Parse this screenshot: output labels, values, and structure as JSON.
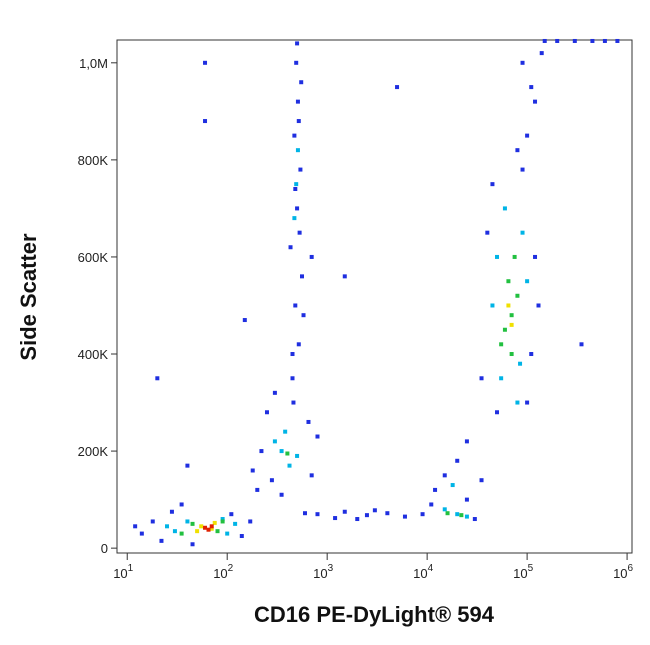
{
  "chart_data": {
    "type": "scatter",
    "xscale": "log",
    "x_label": "CD16 PE-DyLight® 594",
    "y_label": "Side Scatter",
    "xlim": [
      7.9,
      1120000
    ],
    "ylim": [
      -10000,
      1047000
    ],
    "xticks": [
      {
        "value": 10,
        "label": "10",
        "exponent": "1"
      },
      {
        "value": 100,
        "label": "10",
        "exponent": "2"
      },
      {
        "value": 1000,
        "label": "10",
        "exponent": "3"
      },
      {
        "value": 10000,
        "label": "10",
        "exponent": "4"
      },
      {
        "value": 100000,
        "label": "10",
        "exponent": "5"
      },
      {
        "value": 1000000,
        "label": "10",
        "exponent": "6"
      }
    ],
    "yticks": [
      0,
      {
        "value": 200000,
        "label": "200K"
      },
      {
        "value": 400000,
        "label": "400K"
      },
      {
        "value": 600000,
        "label": "600K"
      },
      {
        "value": 800000,
        "label": "800K"
      },
      {
        "value": 1000000,
        "label": "1,0M"
      }
    ],
    "series": [
      {
        "color": "#1f2fe0",
        "x": [
          14,
          18,
          22,
          28,
          35,
          45,
          110,
          140,
          170,
          12,
          200,
          250,
          300,
          220,
          180,
          700,
          800,
          650,
          350,
          280,
          450,
          520,
          480,
          560,
          430,
          500,
          540,
          470,
          510,
          490,
          450,
          530,
          480,
          520,
          550,
          500,
          460,
          580,
          1500,
          2500,
          4000,
          6000,
          800,
          1200,
          3000,
          9000,
          600,
          2000,
          12000,
          15000,
          20000,
          25000,
          30000,
          11000,
          35000,
          35000,
          40000,
          45000,
          110000,
          120000,
          100000,
          90000,
          50000,
          130000,
          100000,
          110000,
          90000,
          120000,
          80000,
          140000,
          200000,
          300000,
          450000,
          600000,
          800000,
          150000,
          60,
          60,
          150,
          20,
          350000,
          1500,
          5000,
          40,
          25000,
          700
        ],
        "values": [
          30000,
          55000,
          15000,
          75000,
          90000,
          8000,
          70000,
          25000,
          55000,
          45000,
          120000,
          280000,
          320000,
          200000,
          160000,
          150000,
          230000,
          260000,
          110000,
          140000,
          350000,
          420000,
          500000,
          560000,
          620000,
          700000,
          780000,
          850000,
          920000,
          1000000,
          400000,
          650000,
          740000,
          880000,
          960000,
          1040000,
          300000,
          480000,
          75000,
          68000,
          72000,
          65000,
          70000,
          62000,
          78000,
          70000,
          72000,
          60000,
          120000,
          150000,
          180000,
          100000,
          60000,
          90000,
          140000,
          350000,
          650000,
          750000,
          400000,
          600000,
          300000,
          780000,
          280000,
          500000,
          850000,
          950000,
          1000000,
          920000,
          820000,
          1020000,
          1045000,
          1045000,
          1045000,
          1045000,
          1045000,
          1045000,
          1000000,
          880000,
          470000,
          350000,
          420000,
          560000,
          950000,
          170000,
          220000,
          600000
        ]
      },
      {
        "color": "#00b4e6",
        "x": [
          30,
          40,
          90,
          100,
          25,
          120,
          350,
          420,
          300,
          500,
          380,
          490,
          510,
          470,
          15000,
          20000,
          18000,
          25000,
          55000,
          85000,
          50000,
          90000,
          60000,
          80000,
          45000,
          100000
        ],
        "values": [
          35000,
          55000,
          60000,
          30000,
          45000,
          50000,
          200000,
          170000,
          220000,
          190000,
          240000,
          750000,
          820000,
          680000,
          80000,
          70000,
          130000,
          65000,
          350000,
          380000,
          600000,
          650000,
          700000,
          300000,
          500000,
          550000
        ]
      },
      {
        "color": "#22c040",
        "x": [
          45,
          80,
          35,
          90,
          400,
          55000,
          70000,
          65000,
          75000,
          60000,
          80000,
          70000,
          16000,
          22000
        ],
        "values": [
          50000,
          35000,
          30000,
          55000,
          195000,
          420000,
          480000,
          550000,
          600000,
          450000,
          520000,
          400000,
          72000,
          68000
        ]
      },
      {
        "color": "#f0e000",
        "x": [
          55,
          70,
          50,
          75,
          65000,
          70000
        ],
        "values": [
          45000,
          40000,
          35000,
          52000,
          500000,
          460000
        ]
      },
      {
        "color": "#e02000",
        "x": [
          60,
          70,
          65
        ],
        "values": [
          42000,
          45000,
          38000
        ]
      }
    ]
  }
}
